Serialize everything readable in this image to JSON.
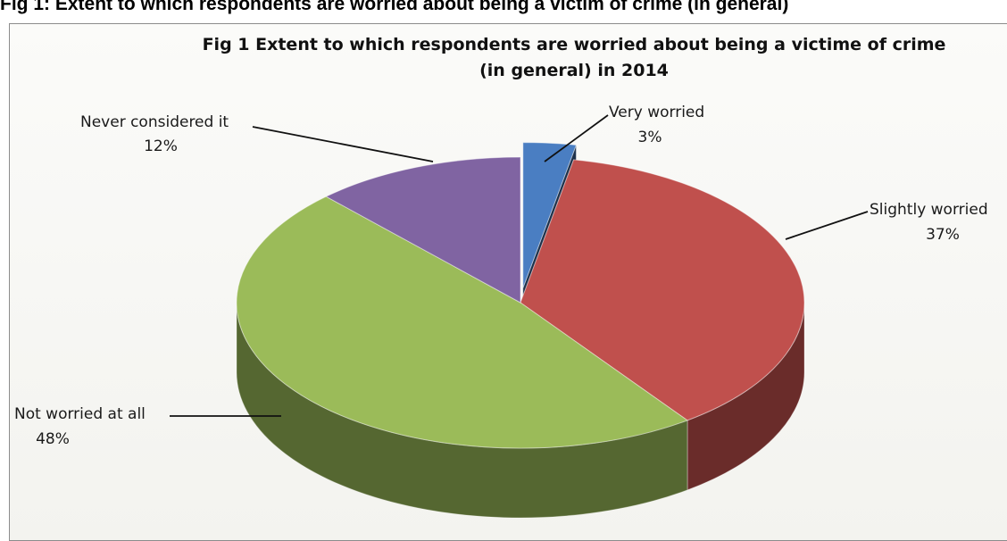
{
  "document": {
    "heading": "Fig 1: Extent to which respondents are worried about being a victim of crime (in general)"
  },
  "chart_data": {
    "type": "pie",
    "title": "Fig 1 Extent to which respondents are worried about being a victime of crime",
    "subtitle": "(in general) in 2014",
    "legend": "none",
    "slices": [
      {
        "label": "Very worried",
        "value": 3,
        "value_label": "3%",
        "color": "#4a7ec2",
        "exploded": true
      },
      {
        "label": "Slightly worried",
        "value": 37,
        "value_label": "37%",
        "color": "#c0504d",
        "exploded": false
      },
      {
        "label": "Not worried at all",
        "value": 48,
        "value_label": "48%",
        "color": "#9bbb59",
        "exploded": false
      },
      {
        "label": "Never considered it",
        "value": 12,
        "value_label": "12%",
        "color": "#8064a2",
        "exploded": false
      }
    ]
  }
}
